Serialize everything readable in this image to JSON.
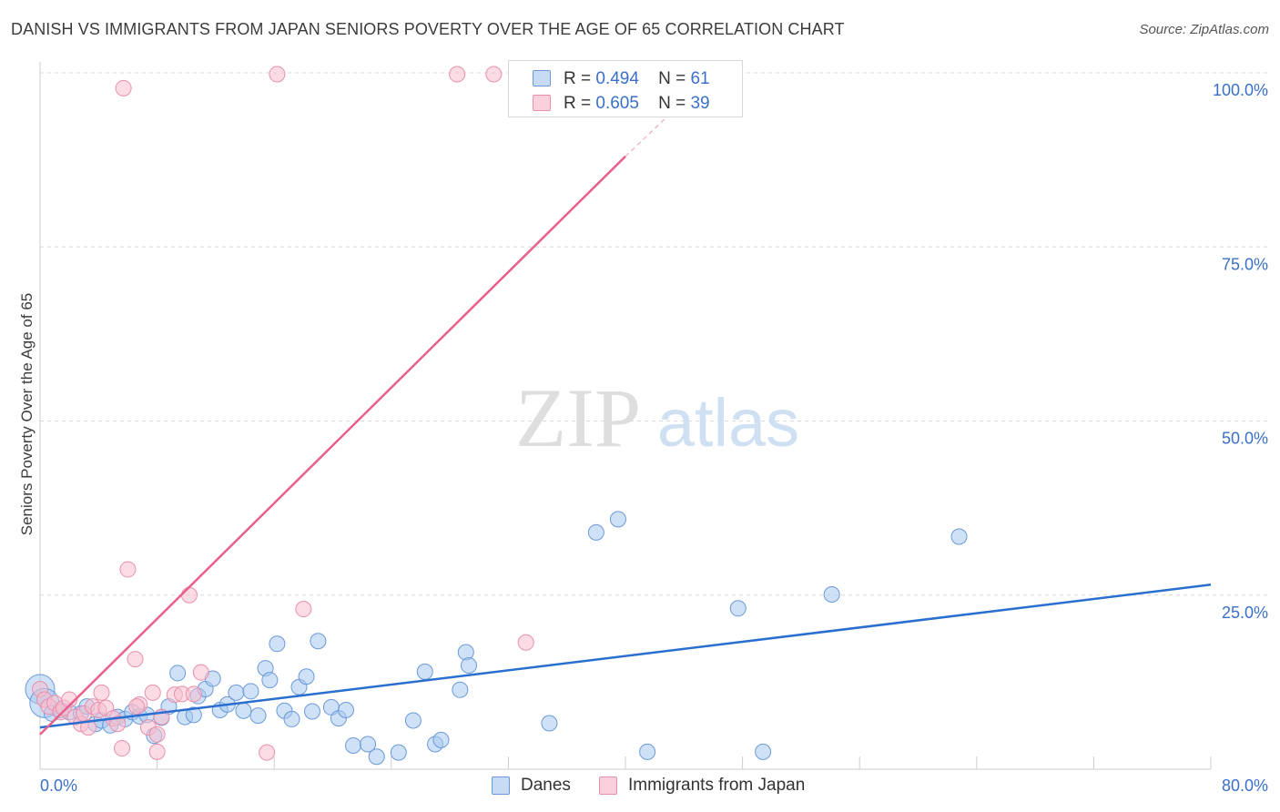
{
  "title": "DANISH VS IMMIGRANTS FROM JAPAN SENIORS POVERTY OVER THE AGE OF 65 CORRELATION CHART",
  "source": "Source: ZipAtlas.com",
  "watermark": {
    "zip": "ZIP",
    "atlas": "atlas"
  },
  "legend": {
    "r_label": "R =",
    "n_label": "N =",
    "rows": [
      {
        "r": "0.494",
        "n": "61",
        "color": "#a8c8f0",
        "stroke": "#6a9ad8"
      },
      {
        "r": "0.605",
        "n": "39",
        "color": "#f8c0d0",
        "stroke": "#e890aa"
      }
    ]
  },
  "bottom_legend": {
    "danes": "Danes",
    "japan": "Immigrants from Japan"
  },
  "chart_data": {
    "type": "scatter",
    "title": "DANISH VS IMMIGRANTS FROM JAPAN SENIORS POVERTY OVER THE AGE OF 65 CORRELATION CHART",
    "xlabel": "",
    "ylabel": "Seniors Poverty Over the Age of 65",
    "xlim": [
      0,
      80
    ],
    "ylim": [
      0,
      100
    ],
    "x_tick_labels": [
      "0.0%",
      "80.0%"
    ],
    "y_tick_labels": [
      "25.0%",
      "50.0%",
      "75.0%",
      "100.0%"
    ],
    "y_ticks": [
      25,
      50,
      75,
      100
    ],
    "grid": true,
    "legend_position": "top-center",
    "colors": {
      "danes": "#a8c8f0",
      "danes_stroke": "#6a9ad8",
      "danes_line": "#2a6fd0",
      "japan": "#f8c0d0",
      "japan_stroke": "#e890aa",
      "japan_line": "#e8608a",
      "tick_text": "#3a70c8"
    },
    "series": [
      {
        "name": "Danes",
        "r": 0.494,
        "n": 61,
        "trend": {
          "x0": 0,
          "y0": 6.0,
          "x1": 80,
          "y1": 26.5
        },
        "points": [
          [
            0.0,
            11.5,
            "L"
          ],
          [
            0.3,
            9.5,
            "L"
          ],
          [
            0.8,
            8.0
          ],
          [
            1.4,
            8.5
          ],
          [
            2.0,
            8.2
          ],
          [
            2.8,
            8.0
          ],
          [
            3.2,
            9.0
          ],
          [
            3.8,
            6.5
          ],
          [
            4.2,
            7.0
          ],
          [
            4.8,
            6.3
          ],
          [
            5.3,
            7.5
          ],
          [
            5.8,
            7.2
          ],
          [
            6.3,
            8.2
          ],
          [
            6.8,
            7.6
          ],
          [
            7.3,
            7.8
          ],
          [
            7.8,
            4.8
          ],
          [
            8.3,
            7.4
          ],
          [
            8.8,
            9.0
          ],
          [
            9.4,
            13.8
          ],
          [
            9.9,
            7.5
          ],
          [
            10.5,
            7.8
          ],
          [
            10.8,
            10.5
          ],
          [
            11.3,
            11.5
          ],
          [
            11.8,
            13.0
          ],
          [
            12.3,
            8.5
          ],
          [
            12.8,
            9.3
          ],
          [
            13.4,
            11.0
          ],
          [
            13.9,
            8.4
          ],
          [
            14.4,
            11.2
          ],
          [
            14.9,
            7.7
          ],
          [
            15.4,
            14.5
          ],
          [
            15.7,
            12.8
          ],
          [
            16.2,
            18.0
          ],
          [
            16.7,
            8.4
          ],
          [
            17.2,
            7.2
          ],
          [
            17.7,
            11.8
          ],
          [
            18.2,
            13.3
          ],
          [
            18.6,
            8.3
          ],
          [
            19.0,
            18.4
          ],
          [
            19.9,
            8.9
          ],
          [
            20.4,
            7.3
          ],
          [
            20.9,
            8.5
          ],
          [
            21.4,
            3.4
          ],
          [
            22.4,
            3.6
          ],
          [
            23.0,
            1.8
          ],
          [
            24.5,
            2.4
          ],
          [
            25.5,
            7.0
          ],
          [
            26.3,
            14.0
          ],
          [
            27.0,
            3.6
          ],
          [
            27.4,
            4.2
          ],
          [
            28.7,
            11.4
          ],
          [
            29.1,
            16.8
          ],
          [
            29.3,
            14.9
          ],
          [
            34.8,
            6.6
          ],
          [
            38.0,
            34.0
          ],
          [
            39.5,
            35.9
          ],
          [
            41.5,
            2.5
          ],
          [
            47.7,
            23.1
          ],
          [
            49.4,
            2.5
          ],
          [
            54.1,
            25.1
          ],
          [
            62.8,
            33.4
          ]
        ]
      },
      {
        "name": "Immigrants from Japan",
        "r": 0.605,
        "n": 39,
        "trend": {
          "x0": 0,
          "y0": 5.0,
          "x1": 40,
          "y1": 88.0,
          "dash_to_x": 43.5,
          "dash_to_y": 95.0
        },
        "points": [
          [
            0.0,
            11.5
          ],
          [
            0.3,
            10.0
          ],
          [
            0.6,
            9.0
          ],
          [
            1.0,
            9.5
          ],
          [
            1.4,
            8.2
          ],
          [
            1.6,
            8.8
          ],
          [
            2.0,
            10.0
          ],
          [
            2.4,
            7.5
          ],
          [
            2.8,
            6.5
          ],
          [
            3.0,
            8.0
          ],
          [
            3.3,
            6.0
          ],
          [
            3.6,
            9.0
          ],
          [
            4.0,
            8.5
          ],
          [
            4.2,
            11.0
          ],
          [
            4.5,
            8.8
          ],
          [
            5.0,
            7.3
          ],
          [
            5.3,
            6.5
          ],
          [
            5.6,
            3.0
          ],
          [
            6.0,
            28.7
          ],
          [
            6.5,
            15.8
          ],
          [
            6.8,
            9.3
          ],
          [
            7.4,
            6.0
          ],
          [
            7.7,
            11.0
          ],
          [
            8.0,
            2.5
          ],
          [
            8.0,
            5.0
          ],
          [
            8.3,
            7.5
          ],
          [
            9.2,
            10.7
          ],
          [
            9.7,
            10.8
          ],
          [
            10.2,
            25.0
          ],
          [
            10.5,
            10.8
          ],
          [
            11.0,
            13.9
          ],
          [
            15.5,
            2.4
          ],
          [
            16.2,
            99.8
          ],
          [
            18.0,
            23.0
          ],
          [
            28.5,
            99.8
          ],
          [
            31.0,
            99.8
          ],
          [
            33.2,
            18.2
          ],
          [
            5.7,
            97.8
          ],
          [
            6.6,
            9.0
          ]
        ]
      }
    ]
  }
}
